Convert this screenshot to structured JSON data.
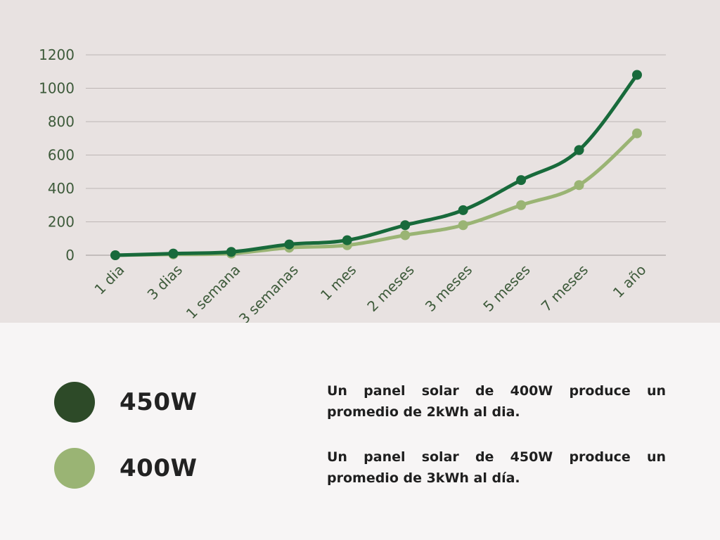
{
  "chart_data": {
    "type": "line",
    "categories": [
      "1 dia",
      "3 dias",
      "1 semana",
      "3 semanas",
      "1 mes",
      "2 meses",
      "3 meses",
      "5 meses",
      "7 meses",
      "1 año"
    ],
    "series": [
      {
        "name": "450W",
        "color": "#186a3b",
        "values": [
          0,
          10,
          20,
          65,
          90,
          180,
          270,
          450,
          630,
          1080
        ]
      },
      {
        "name": "400W",
        "color": "#9ab474",
        "values": [
          0,
          5,
          10,
          45,
          60,
          120,
          180,
          300,
          420,
          730
        ]
      }
    ],
    "ylim": [
      0,
      1200
    ],
    "yticks": [
      0,
      200,
      400,
      600,
      800,
      1000,
      1200
    ],
    "grid": true,
    "title": "",
    "xlabel": "",
    "ylabel": ""
  },
  "legend": {
    "items": [
      {
        "label": "450W",
        "color": "#2d4a28"
      },
      {
        "label": "400W",
        "color": "#9ab474"
      }
    ]
  },
  "notes": [
    "Un panel solar de 400W produce un promedio de 2kWh al dia.",
    "Un panel solar de 450W produce un promedio de 3kWh al día."
  ],
  "colors": {
    "chart_background": "#e8e2e1",
    "page_background": "#f7f5f5",
    "gridline": "#bdb6b5",
    "tick_text": "#3d5a3a"
  }
}
